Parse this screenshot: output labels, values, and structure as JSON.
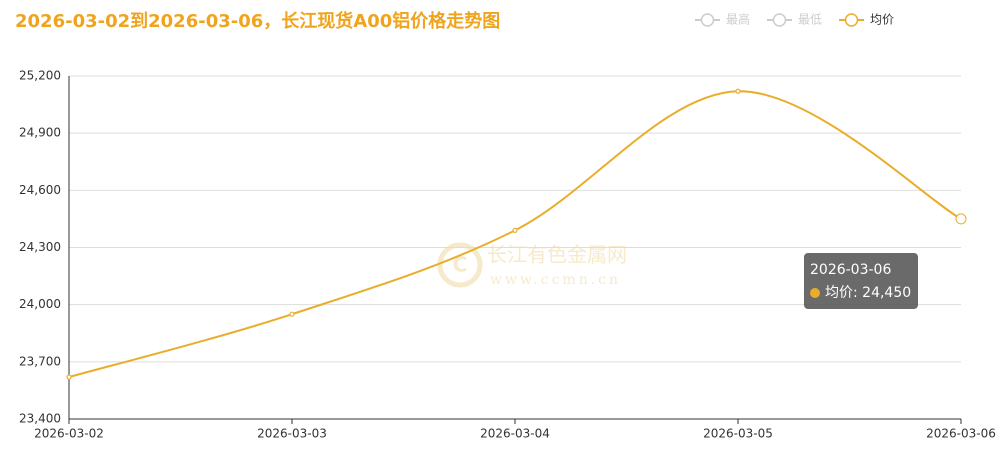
{
  "chart_data": {
    "type": "line",
    "title": "2026-03-02到2026-03-06，长江现货A00铝价格走势图",
    "categories": [
      "2026-03-02",
      "2026-03-03",
      "2026-03-04",
      "2026-03-05",
      "2026-03-06"
    ],
    "series": [
      {
        "name": "最高",
        "color": "#cccccc",
        "visible": false
      },
      {
        "name": "最低",
        "color": "#cccccc",
        "visible": false
      },
      {
        "name": "均价",
        "color": "#eaad2b",
        "visible": true,
        "values": [
          23620,
          23950,
          24390,
          25120,
          24450
        ]
      }
    ],
    "ylim": [
      23400,
      25200
    ],
    "yticks": [
      {
        "value": 23400,
        "label": "23,400"
      },
      {
        "value": 23700,
        "label": "23,700"
      },
      {
        "value": 24000,
        "label": "24,000"
      },
      {
        "value": 24300,
        "label": "24,300"
      },
      {
        "value": 24600,
        "label": "24,600"
      },
      {
        "value": 24900,
        "label": "24,900"
      },
      {
        "value": 25200,
        "label": "25,200"
      }
    ],
    "grid": true,
    "smooth": true,
    "legend": "top-right",
    "tooltip": {
      "title": "2026-03-06",
      "text": "均价: 24,450"
    },
    "watermark": {
      "name": "长江有色金属网",
      "url": "www.ccmn.cn"
    }
  }
}
